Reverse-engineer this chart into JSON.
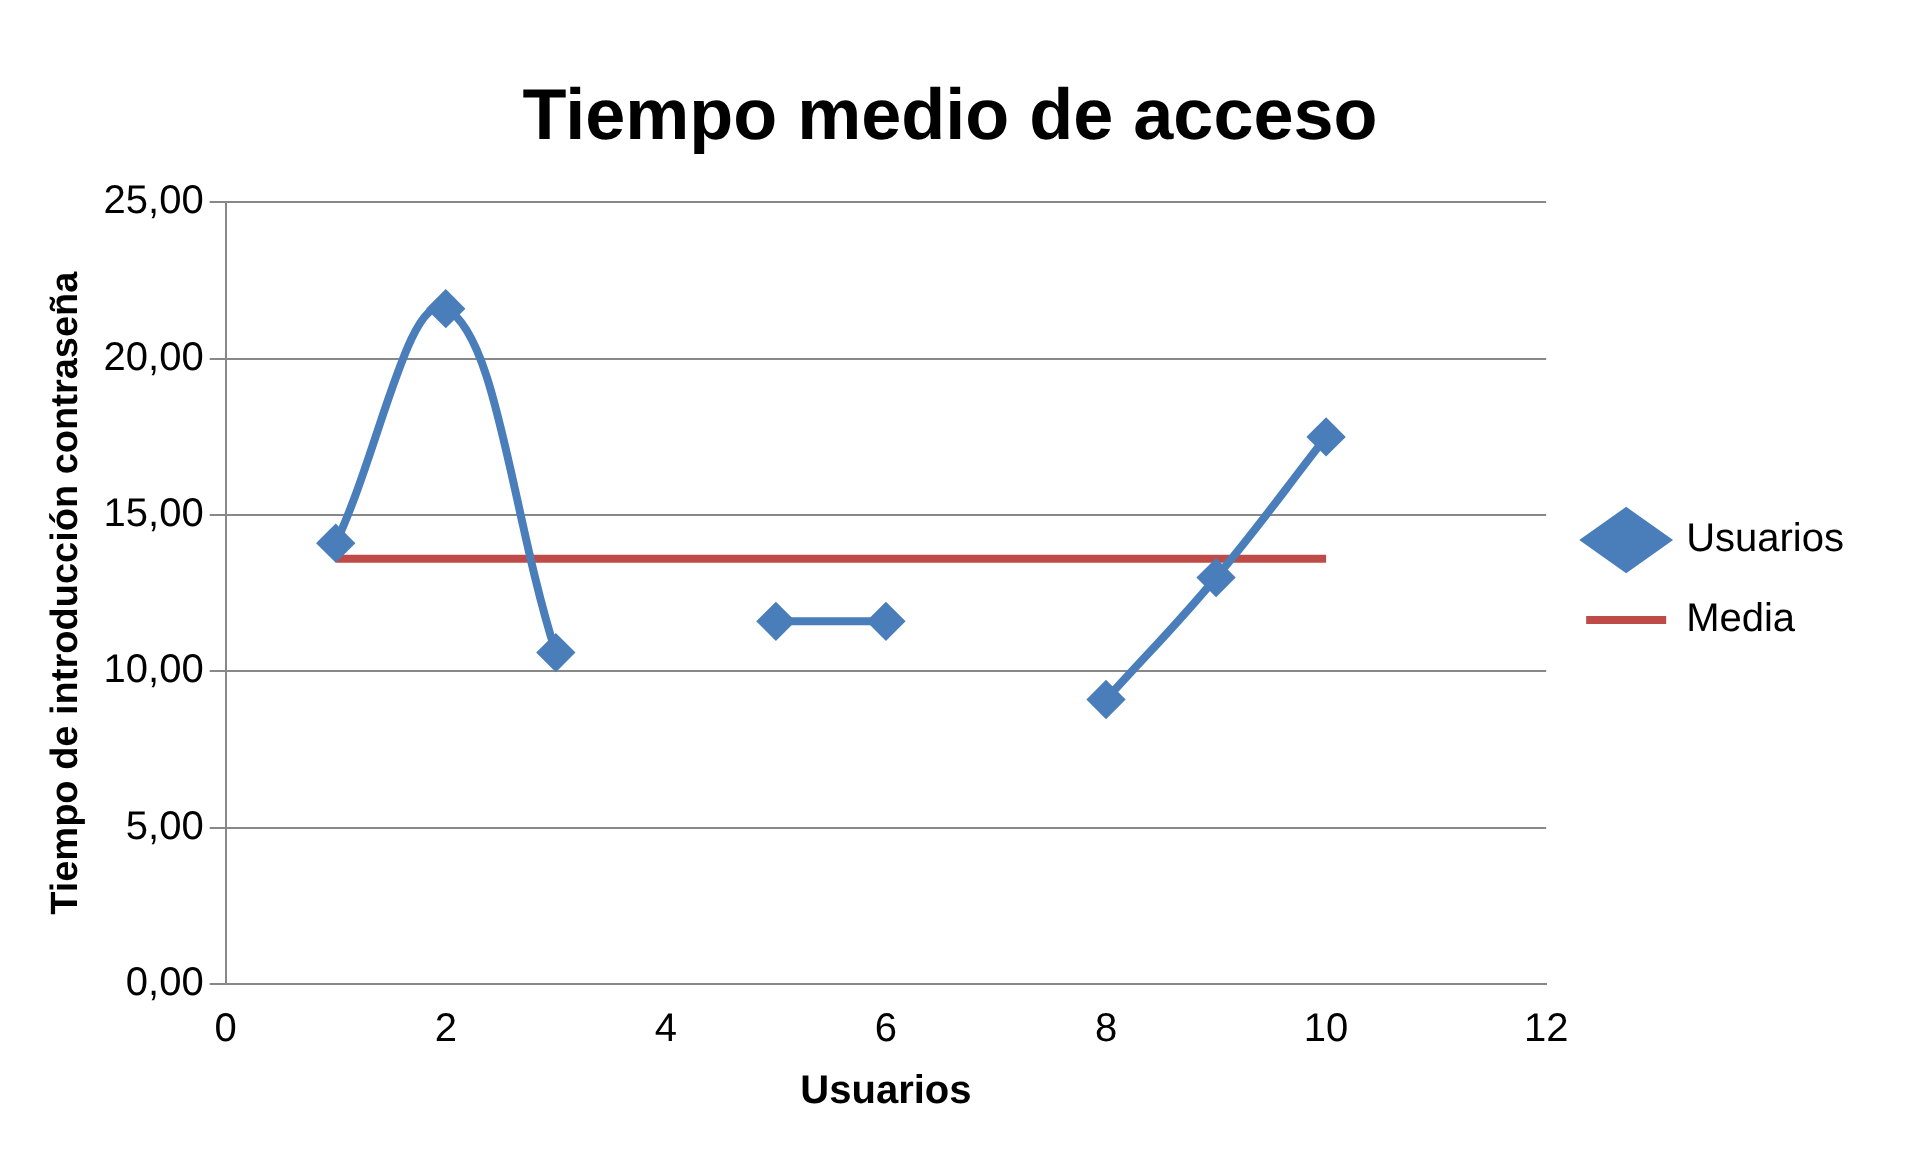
{
  "chart_data": {
    "type": "line",
    "title": "Tiempo medio de acceso",
    "xlabel": "Usuarios",
    "ylabel": "Tiempo de introducción contraseña",
    "x": [
      1,
      2,
      3,
      4,
      5,
      6,
      7,
      8,
      9,
      10
    ],
    "series": [
      {
        "name": "Usuarios",
        "color": "#4a7ebb",
        "values": [
          14.1,
          21.6,
          10.6,
          null,
          11.6,
          11.6,
          null,
          9.1,
          13.0,
          17.5
        ],
        "marker": "diamond"
      },
      {
        "name": "Media",
        "color": "#be4b48",
        "type": "line",
        "x": [
          1,
          10
        ],
        "values": [
          13.6,
          13.6
        ],
        "marker": "none"
      }
    ],
    "xlim": [
      0,
      12
    ],
    "xticks": [
      0,
      2,
      4,
      6,
      8,
      10,
      12
    ],
    "ylim": [
      0,
      25
    ],
    "yticks": [
      {
        "value": 0,
        "label": "0,00"
      },
      {
        "value": 5,
        "label": "5,00"
      },
      {
        "value": 10,
        "label": "10,00"
      },
      {
        "value": 15,
        "label": "15,00"
      },
      {
        "value": 20,
        "label": "20,00"
      },
      {
        "value": 25,
        "label": "25,00"
      }
    ],
    "grid": "y",
    "legend": "right",
    "line_style": "solid"
  }
}
